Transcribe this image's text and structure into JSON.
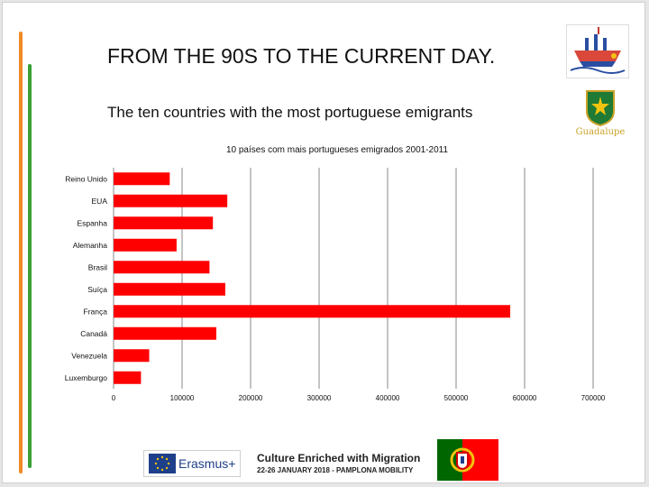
{
  "slide": {
    "title": "FROM THE 90S TO THE CURRENT DAY.",
    "subtitle": "The ten countries with the most portuguese emigrants",
    "crest_text": "Guadalupe"
  },
  "chart_data": {
    "type": "bar",
    "orientation": "horizontal",
    "title": "10 países com mais portugueses emigrados 2001-2011",
    "categories": [
      "Reino Unido",
      "EUA",
      "Espanha",
      "Alemanha",
      "Brasil",
      "Suíça",
      "França",
      "Canadá",
      "Venezuela",
      "Luxemburgo"
    ],
    "values": [
      82000,
      166000,
      145000,
      92000,
      140000,
      163000,
      579000,
      150000,
      52000,
      40000
    ],
    "xlim": [
      0,
      700000
    ],
    "xticks": [
      "0",
      "100000",
      "200000",
      "300000",
      "400000",
      "500000",
      "600000",
      "700000"
    ],
    "grid": true,
    "bar_color": "#ff0000"
  },
  "footer": {
    "erasmus_label": "Erasmus+",
    "banner_title": "Culture Enriched with Migration",
    "banner_subtitle": "22-26 JANUARY 2018 - PAMPLONA MOBILITY"
  },
  "colors": {
    "accent_orange": "#f08a24",
    "accent_green": "#3aa035",
    "flag_green": "#006600",
    "flag_red": "#ff0000"
  }
}
